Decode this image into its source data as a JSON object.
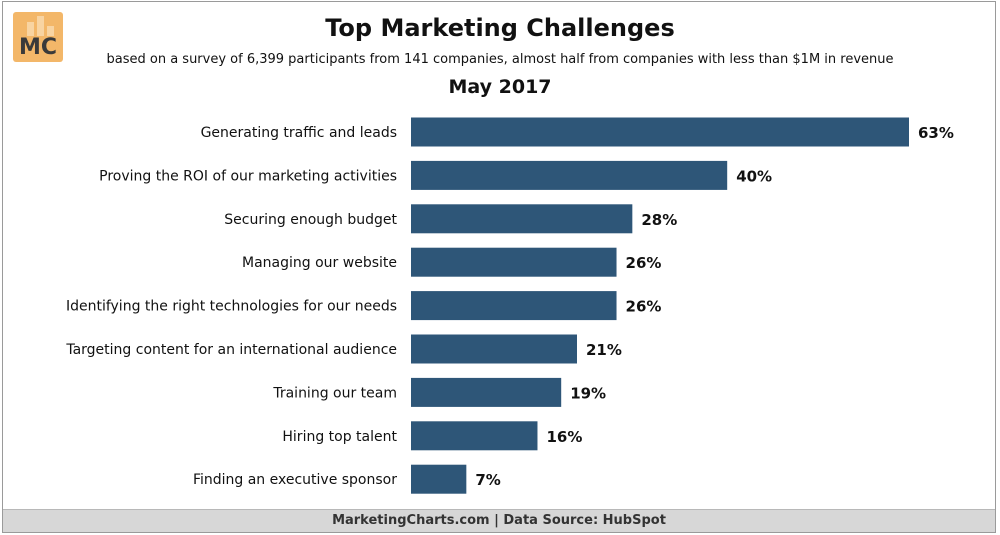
{
  "logo": {
    "text": "MC",
    "color": "#f3b769",
    "text_color": "#3a3a3a"
  },
  "header": {
    "title": "Top Marketing Challenges",
    "subtitle": "based on a survey of 6,399 participants from 141 companies, almost half from companies with less than $1M in revenue",
    "period": "May 2017"
  },
  "chart_data": {
    "type": "bar",
    "orientation": "horizontal",
    "title": "Top Marketing Challenges",
    "categories": [
      "Generating traffic and leads",
      "Proving the ROI of our marketing activities",
      "Securing enough budget",
      "Managing our website",
      "Identifying the right technologies for our needs",
      "Targeting content for an international audience",
      "Training our team",
      "Hiring top talent",
      "Finding an executive sponsor"
    ],
    "values": [
      63,
      40,
      28,
      26,
      26,
      21,
      19,
      16,
      7
    ],
    "value_labels": [
      "63%",
      "40%",
      "28%",
      "26%",
      "26%",
      "21%",
      "19%",
      "16%",
      "7%"
    ],
    "xlim": [
      0,
      63
    ],
    "grid": false,
    "bar_color": "#2e5678"
  },
  "footer": {
    "text": "MarketingCharts.com | Data Source: HubSpot"
  }
}
